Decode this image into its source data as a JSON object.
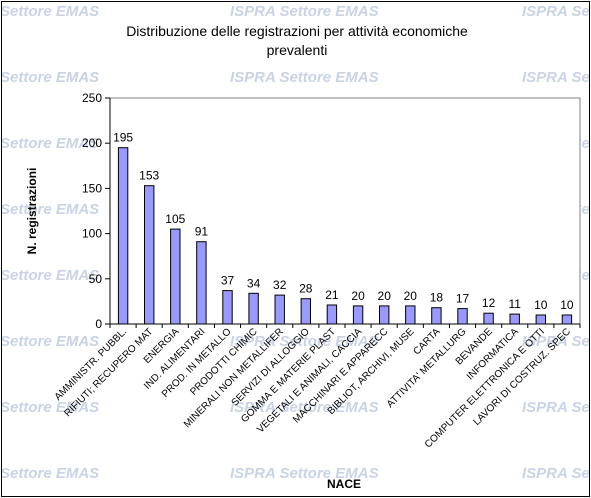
{
  "watermark": {
    "text_short": "Settore EMAS",
    "text_full": "ISPRA Settore EMAS"
  },
  "chart_data": {
    "type": "bar",
    "title_line1": "Distribuzione delle registrazioni per attività economiche",
    "title_line2": "prevalenti",
    "xlabel": "NACE",
    "ylabel": "N. registrazioni",
    "ylim": [
      0,
      250
    ],
    "yticks": [
      "0",
      "50",
      "100",
      "150",
      "200",
      "250"
    ],
    "grid": false,
    "legend": "none",
    "bar_color": "#9999ff",
    "categories": [
      "AMMINISTR. PUBBL.",
      "RIFIUTI; RECUPERO MAT",
      "ENERGIA",
      "IND. ALIMENTARI",
      "PROD. IN METALLO",
      "PRODOTTI CHIMIC",
      "MINERALI NON METALLIFER",
      "SERVIZI DI ALLOGGIO",
      "GOMMA E MATERIE PLAST",
      "VEGETALI E ANIMALI, CACCIA",
      "MACCHINARI E APPARECC",
      "BIBLIOT, ARCHIVI, MUSE",
      "CARTA",
      "ATTIVITA' METALLURG",
      "BEVANDE",
      "INFORMATICA",
      "COMPUTER ELETTRONICA E OTTI",
      "LAVORI DI COSTRUZ. SPEC"
    ],
    "values": [
      195,
      153,
      105,
      91,
      37,
      34,
      32,
      28,
      21,
      20,
      20,
      20,
      18,
      17,
      12,
      11,
      10,
      10
    ],
    "value_labels": [
      "195",
      "153",
      "105",
      "91",
      "37",
      "34",
      "32",
      "28",
      "21",
      "20",
      "20",
      "20",
      "18",
      "17",
      "12",
      "11",
      "10",
      "10"
    ]
  }
}
